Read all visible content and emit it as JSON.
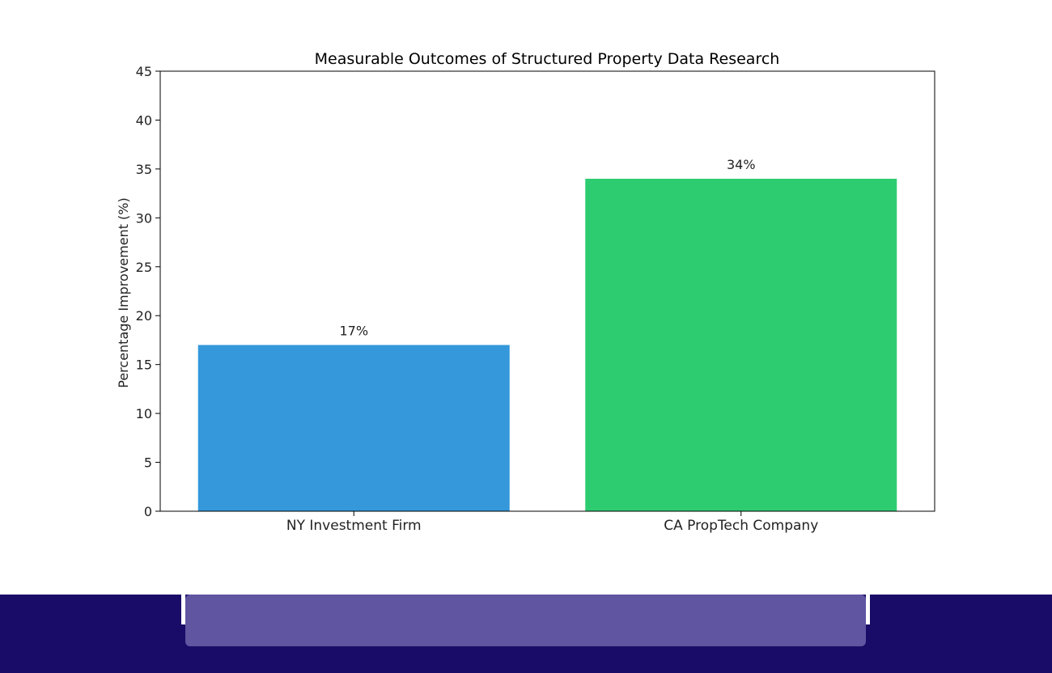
{
  "chart_data": {
    "type": "bar",
    "title": "Measurable Outcomes of Structured Property Data Research",
    "xlabel": "",
    "ylabel": "Percentage Improvement (%)",
    "categories": [
      "NY Investment Firm",
      "CA PropTech Company"
    ],
    "values": [
      17,
      34
    ],
    "data_labels": [
      "17%",
      "34%"
    ],
    "colors": [
      "#3498db",
      "#2ecc71"
    ],
    "ylim": [
      0,
      45
    ],
    "yticks": [
      0,
      5,
      10,
      15,
      20,
      25,
      30,
      35,
      40,
      45
    ],
    "grid": false,
    "legend": "none"
  },
  "footer": {
    "bar_color": "#190c68",
    "panel_color": "#5f55a0"
  }
}
